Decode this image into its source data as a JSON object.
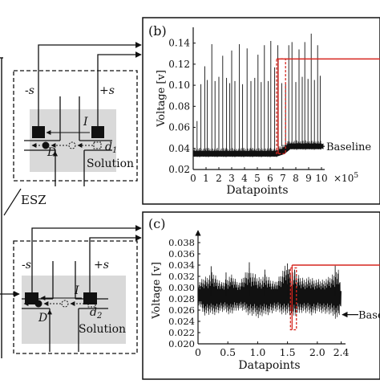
{
  "colors": {
    "red": "#d6261f",
    "gray_box": "#d9d9d9",
    "ink": "#111111"
  },
  "esz_label": "ESZ",
  "sensor_top": {
    "minus_label": "-s",
    "plus_label": "+s",
    "current_label": "I",
    "d_label": "D",
    "distance_label": "d",
    "distance_sub": "1",
    "solution_label": "Solution"
  },
  "sensor_bottom": {
    "minus_label": "-s",
    "plus_label": "+s",
    "current_label": "I",
    "d_label": "D",
    "distance_label": "d",
    "distance_sub": "2",
    "solution_label": "Solution"
  },
  "chart_data": [
    {
      "panel": "(b)",
      "type": "line",
      "ylabel": "Voltage [v]",
      "xlabel": "Datapoints",
      "x_multiplier": "×10^5",
      "x_ticks": [
        "0",
        "1",
        "2",
        "3",
        "4",
        "5",
        "6",
        "7",
        "8",
        "9",
        "10"
      ],
      "y_ticks": [
        "0.02",
        "0.04",
        "0.06",
        "0.08",
        "0.10",
        "0.12",
        "0.14"
      ],
      "xlim": [
        0,
        1000000
      ],
      "ylim": [
        0.02,
        0.155
      ],
      "baseline_label": "Baseline",
      "baseline": [
        {
          "x": 0,
          "y": 0.035
        },
        {
          "x": 650000,
          "y": 0.035
        },
        {
          "x": 700000,
          "y": 0.037
        },
        {
          "x": 750000,
          "y": 0.042
        },
        {
          "x": 1000000,
          "y": 0.042
        }
      ],
      "spikes": [
        {
          "x": 30000,
          "y": 0.066
        },
        {
          "x": 60000,
          "y": 0.101
        },
        {
          "x": 90000,
          "y": 0.118
        },
        {
          "x": 110000,
          "y": 0.105
        },
        {
          "x": 145000,
          "y": 0.139
        },
        {
          "x": 170000,
          "y": 0.104
        },
        {
          "x": 200000,
          "y": 0.108
        },
        {
          "x": 230000,
          "y": 0.128
        },
        {
          "x": 260000,
          "y": 0.107
        },
        {
          "x": 285000,
          "y": 0.102
        },
        {
          "x": 300000,
          "y": 0.133
        },
        {
          "x": 325000,
          "y": 0.104
        },
        {
          "x": 360000,
          "y": 0.139
        },
        {
          "x": 385000,
          "y": 0.101
        },
        {
          "x": 420000,
          "y": 0.135
        },
        {
          "x": 450000,
          "y": 0.104
        },
        {
          "x": 480000,
          "y": 0.107
        },
        {
          "x": 505000,
          "y": 0.129
        },
        {
          "x": 530000,
          "y": 0.103
        },
        {
          "x": 555000,
          "y": 0.138
        },
        {
          "x": 585000,
          "y": 0.104
        },
        {
          "x": 605000,
          "y": 0.142
        },
        {
          "x": 635000,
          "y": 0.117
        },
        {
          "x": 660000,
          "y": 0.138
        },
        {
          "x": 690000,
          "y": 0.102
        },
        {
          "x": 720000,
          "y": 0.101
        },
        {
          "x": 745000,
          "y": 0.138
        },
        {
          "x": 770000,
          "y": 0.141
        },
        {
          "x": 800000,
          "y": 0.103
        },
        {
          "x": 825000,
          "y": 0.134
        },
        {
          "x": 850000,
          "y": 0.108
        },
        {
          "x": 870000,
          "y": 0.141
        },
        {
          "x": 895000,
          "y": 0.106
        },
        {
          "x": 920000,
          "y": 0.149
        },
        {
          "x": 945000,
          "y": 0.105
        },
        {
          "x": 970000,
          "y": 0.138
        },
        {
          "x": 990000,
          "y": 0.109
        }
      ],
      "highlight_x": [
        650000,
        720000
      ],
      "highlight_y": [
        0.035,
        0.125
      ],
      "connector_y": 0.125
    },
    {
      "panel": "(c)",
      "type": "line",
      "ylabel": "Voltage [v]",
      "xlabel": "Datapoints",
      "x_ticks": [
        "0",
        "0.5",
        "1.0",
        "1.5",
        "2.0",
        "2.4"
      ],
      "x_tick_values": [
        0,
        0.5,
        1.0,
        1.5,
        2.0,
        2.4
      ],
      "y_ticks": [
        "0.020",
        "0.022",
        "0.024",
        "0.026",
        "0.028",
        "0.030",
        "0.032",
        "0.034",
        "0.036",
        "0.038"
      ],
      "xlim": [
        0,
        2.5
      ],
      "ylim": [
        0.02,
        0.039
      ],
      "baseline_label": "Baseline",
      "noise": [
        {
          "x": 0.0,
          "lo": 0.027,
          "hi": 0.031
        },
        {
          "x": 0.1,
          "lo": 0.025,
          "hi": 0.032
        },
        {
          "x": 0.25,
          "lo": 0.025,
          "hi": 0.033
        },
        {
          "x": 0.4,
          "lo": 0.0255,
          "hi": 0.031
        },
        {
          "x": 0.55,
          "lo": 0.025,
          "hi": 0.0325
        },
        {
          "x": 0.7,
          "lo": 0.026,
          "hi": 0.031
        },
        {
          "x": 0.85,
          "lo": 0.025,
          "hi": 0.034
        },
        {
          "x": 1.0,
          "lo": 0.0245,
          "hi": 0.032
        },
        {
          "x": 1.15,
          "lo": 0.025,
          "hi": 0.0325
        },
        {
          "x": 1.3,
          "lo": 0.0255,
          "hi": 0.031
        },
        {
          "x": 1.45,
          "lo": 0.025,
          "hi": 0.034
        },
        {
          "x": 1.6,
          "lo": 0.0245,
          "hi": 0.033
        },
        {
          "x": 1.75,
          "lo": 0.0255,
          "hi": 0.032
        },
        {
          "x": 1.9,
          "lo": 0.025,
          "hi": 0.032
        },
        {
          "x": 2.05,
          "lo": 0.0255,
          "hi": 0.0315
        },
        {
          "x": 2.2,
          "lo": 0.025,
          "hi": 0.032
        },
        {
          "x": 2.35,
          "lo": 0.024,
          "hi": 0.0335
        },
        {
          "x": 2.4,
          "lo": 0.0265,
          "hi": 0.03
        }
      ],
      "peaks": [
        {
          "x": 0.22,
          "y": 0.0338
        },
        {
          "x": 0.47,
          "y": 0.0327
        },
        {
          "x": 0.86,
          "y": 0.0345
        },
        {
          "x": 1.12,
          "y": 0.0332
        },
        {
          "x": 1.5,
          "y": 0.0343
        },
        {
          "x": 1.53,
          "y": 0.0332
        },
        {
          "x": 1.62,
          "y": 0.0332
        },
        {
          "x": 2.3,
          "y": 0.0339
        }
      ],
      "highlight_x": [
        1.55,
        1.65
      ],
      "highlight_y": [
        0.0225,
        0.0335
      ],
      "connector_y": 0.034
    }
  ]
}
